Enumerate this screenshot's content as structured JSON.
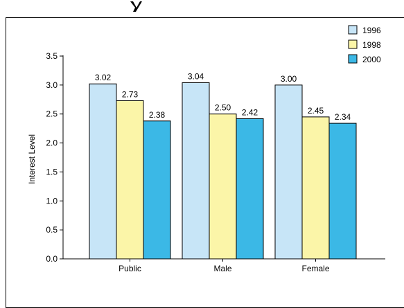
{
  "chart_data": {
    "type": "bar",
    "title": "",
    "xlabel": "",
    "ylabel": "Interest Level",
    "ylim": [
      0,
      3.5
    ],
    "yticks": [
      "0.0",
      "0.5",
      "1.0",
      "1.5",
      "2.0",
      "2.5",
      "3.0",
      "3.5"
    ],
    "categories": [
      "Public",
      "Male",
      "Female"
    ],
    "series": [
      {
        "name": "1996",
        "values": [
          3.02,
          3.04,
          3.0
        ],
        "labels": [
          "3.02",
          "3.04",
          "3.00"
        ],
        "color": "#c7e5f7"
      },
      {
        "name": "1998",
        "values": [
          2.73,
          2.5,
          2.45
        ],
        "labels": [
          "2.73",
          "2.50",
          "2.45"
        ],
        "color": "#fbf5a8"
      },
      {
        "name": "2000",
        "values": [
          2.38,
          2.42,
          2.34
        ],
        "labels": [
          "2.38",
          "2.42",
          "2.34"
        ],
        "color": "#3bb8e6"
      }
    ],
    "grid": false,
    "legend": "top-right"
  }
}
